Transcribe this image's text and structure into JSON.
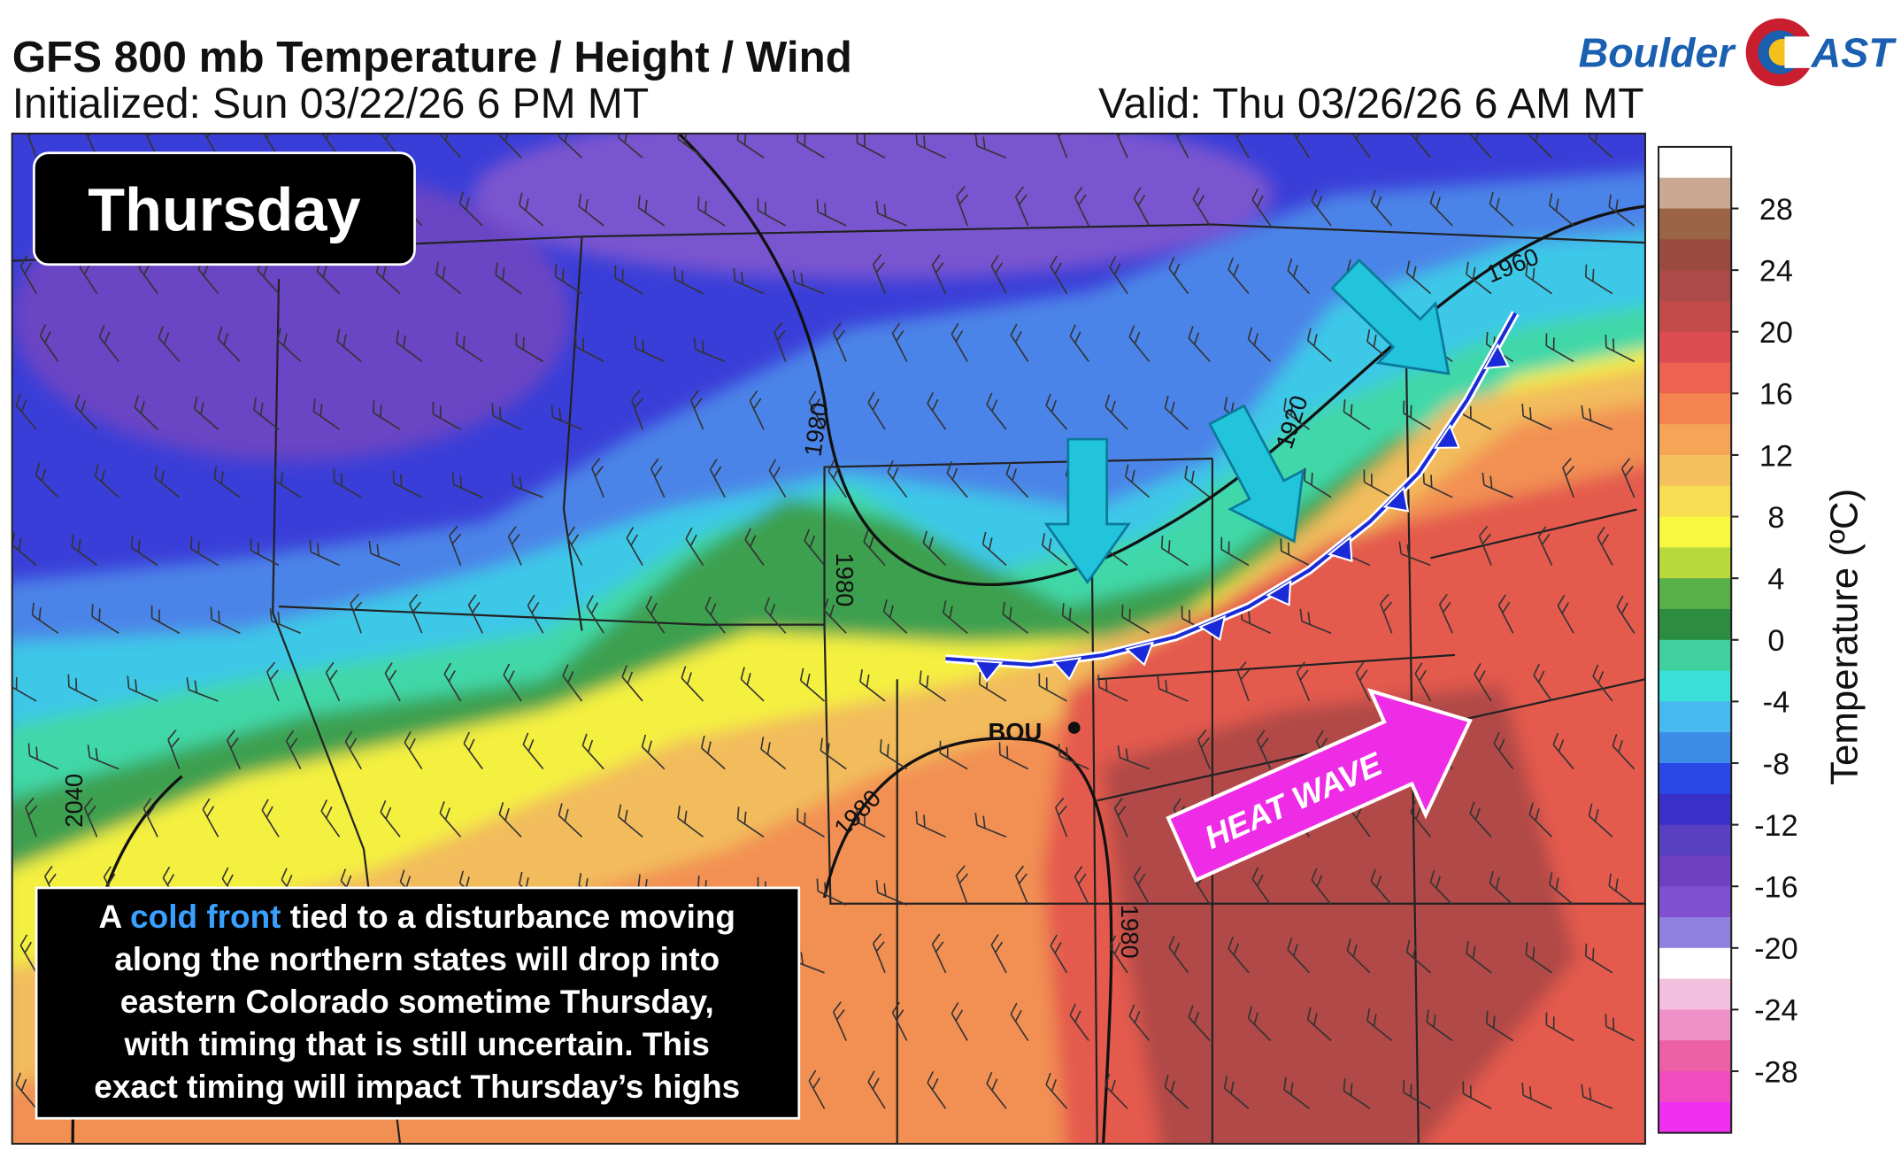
{
  "header": {
    "title": "GFS 800 mb Temperature / Height / Wind",
    "initialized": "Initialized: Sun 03/22/26 6 PM MT",
    "valid": "Valid: Thu 03/26/26 6 AM MT"
  },
  "logo": {
    "left": "Boulder",
    "right": "AST"
  },
  "panel_label": "Thursday",
  "station": "BOU",
  "contour_labels": [
    "1980",
    "1980",
    "1920",
    "1960",
    "2040",
    "1980",
    "1980"
  ],
  "callout": "HEAT WAVE",
  "annotation": {
    "lines": [
      [
        "A ",
        "cold front",
        " tied to a disturbance moving"
      ],
      [
        "along the northern states will drop into"
      ],
      [
        "eastern Colorado sometime Thursday,"
      ],
      [
        "with timing that is still uncertain. This"
      ],
      [
        "exact timing will impact Thursday’s highs"
      ]
    ]
  },
  "colorbar": {
    "label": "Temperature (ºC)",
    "lim": [
      32,
      -32
    ],
    "ticks": [
      28,
      24,
      20,
      16,
      12,
      8,
      4,
      0,
      -4,
      -8,
      -12,
      -16,
      -20,
      -24,
      -28
    ],
    "colors": [
      "#ffffff",
      "#c9a993",
      "#9c6446",
      "#9a4a3e",
      "#ab4a48",
      "#c24a4a",
      "#dc4c50",
      "#ee6252",
      "#f48450",
      "#f6a456",
      "#f4c15e",
      "#f8dc52",
      "#f8f840",
      "#b8d83c",
      "#58b048",
      "#2c8c40",
      "#40d0a0",
      "#38e0d8",
      "#48b8f0",
      "#3c8ce8",
      "#2848e8",
      "#3830c8",
      "#5840c0",
      "#7040c0",
      "#8050d0",
      "#9080e0",
      "#ffffff",
      "#f4c0e0",
      "#f090c8",
      "#ec60a8",
      "#f04cc0",
      "#f030f0"
    ]
  }
}
